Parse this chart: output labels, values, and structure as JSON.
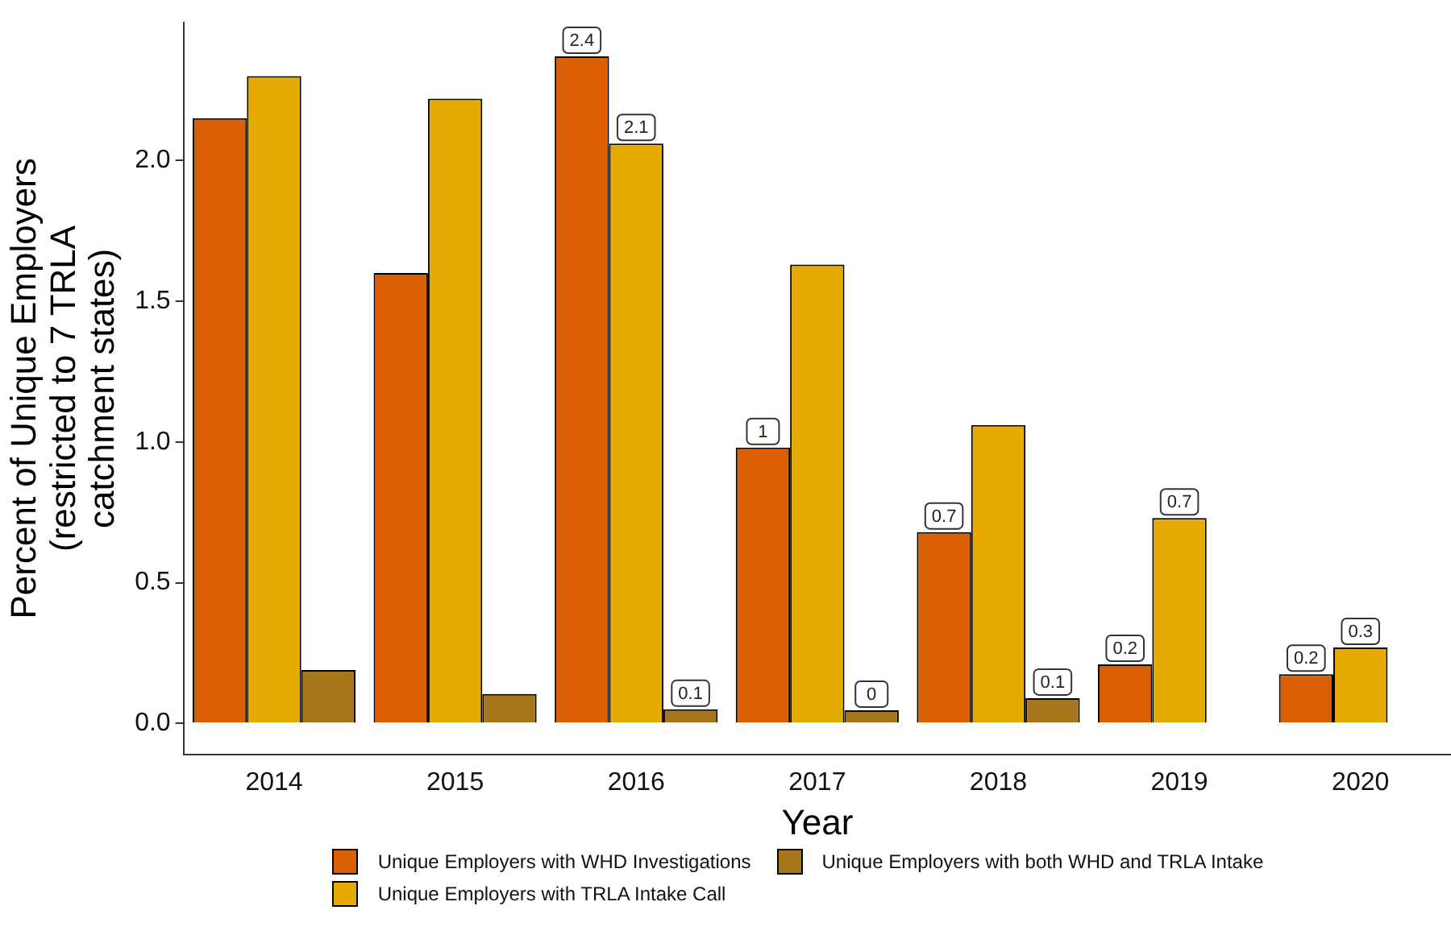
{
  "chart_data": {
    "type": "bar",
    "xlabel": "Year",
    "ylabel": "Percent of Unique Employers\n(restricted to 7 TRLA\ncatchment states)",
    "categories": [
      "2014",
      "2015",
      "2016",
      "2017",
      "2018",
      "2019",
      "2020"
    ],
    "series": [
      {
        "name": "Unique Employers with WHD Investigations",
        "color": "#d95f02",
        "values": [
          2.15,
          1.6,
          2.37,
          0.98,
          0.68,
          0.21,
          0.175
        ],
        "value_labels": [
          null,
          null,
          "2.4",
          "1",
          "0.7",
          "0.2",
          "0.2"
        ]
      },
      {
        "name": "Unique Employers with TRLA Intake Call",
        "color": "#e6ab02",
        "values": [
          2.3,
          2.22,
          2.06,
          1.63,
          1.06,
          0.73,
          0.27
        ],
        "value_labels": [
          null,
          null,
          "2.1",
          null,
          null,
          "0.7",
          "0.3"
        ]
      },
      {
        "name": "Unique Employers with both WHD and TRLA Intake",
        "color": "#a6761d",
        "values": [
          0.19,
          0.105,
          0.05,
          0.047,
          0.09,
          0,
          0
        ],
        "value_labels": [
          null,
          null,
          "0.1",
          "0",
          "0.1",
          null,
          null
        ]
      }
    ],
    "ylim": [
      -0.11,
      2.49
    ],
    "yticks": [
      {
        "value": 0,
        "label": "0.0"
      },
      0.5,
      {
        "value": 1,
        "label": "1.0"
      },
      1.5,
      {
        "value": 2,
        "label": "2.0"
      }
    ],
    "grid": false,
    "legend": "bottom"
  }
}
